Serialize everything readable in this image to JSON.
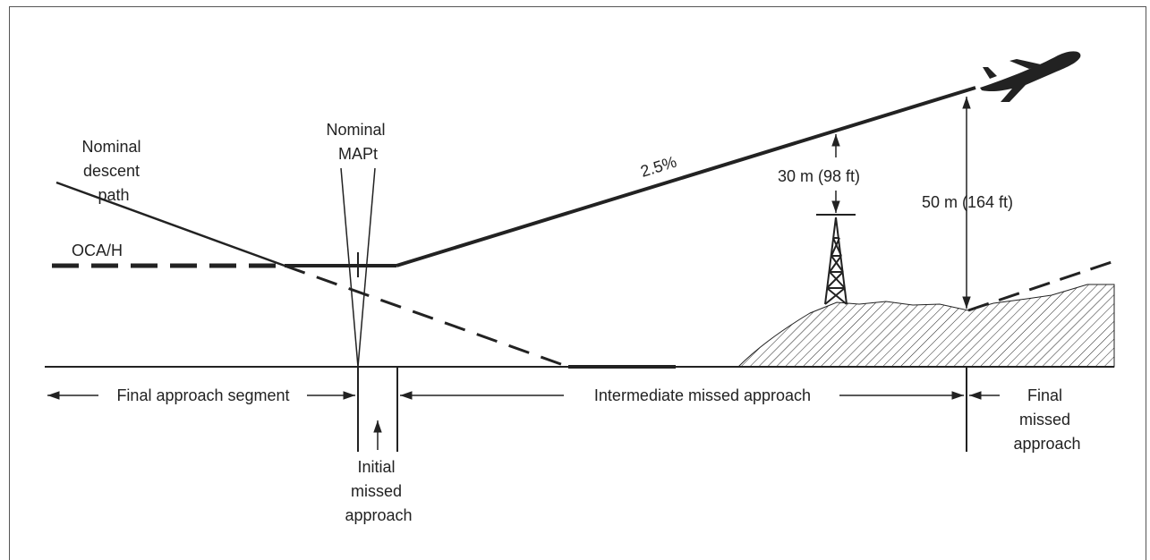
{
  "labels": {
    "nominal_descent_path": [
      "Nominal",
      "descent",
      "path"
    ],
    "nominal_mapt": [
      "Nominal",
      "MAPt"
    ],
    "oca_h": "OCA/H",
    "climb_gradient": "2.5%",
    "obstacle_clearance": "30 m (98 ft)",
    "terrain_clearance": "50 m (164 ft)"
  },
  "segments": {
    "final_approach": "Final approach segment",
    "initial_missed": [
      "Initial",
      "missed",
      "approach"
    ],
    "intermediate_missed": "Intermediate missed approach",
    "final_missed": [
      "Final",
      "missed",
      "approach"
    ]
  },
  "colors": {
    "line": "#222222",
    "frame": "#555555",
    "terrain_hatch": "#222222"
  },
  "icons": {
    "aircraft": "airplane-icon",
    "obstacle": "tower-icon",
    "terrain": "hatched-terrain"
  }
}
